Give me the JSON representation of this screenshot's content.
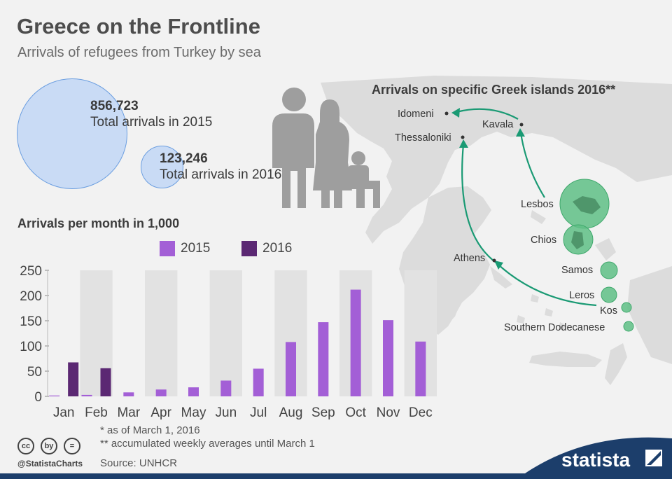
{
  "header": {
    "title": "Greece on the Frontline",
    "subtitle": "Arrivals of refugees from Turkey by sea"
  },
  "totals": {
    "y2015": {
      "value": "856,723",
      "label": "Total arrivals in 2015"
    },
    "y2016": {
      "value": "123,246",
      "label": "Total arrivals in 2016*"
    }
  },
  "map": {
    "title": "Arrivals on specific Greek islands 2016**",
    "cities": [
      "Idomeni",
      "Kavala",
      "Thessaloniki",
      "Athens"
    ],
    "islands": [
      "Lesbos",
      "Chios",
      "Samos",
      "Leros",
      "Kos",
      "Southern Dodecanese"
    ]
  },
  "monthly": {
    "title": "Arrivals per month in 1,000"
  },
  "chart_data": {
    "type": "bar",
    "title": "Arrivals per month in 1,000",
    "categories": [
      "Jan",
      "Feb",
      "Mar",
      "Apr",
      "May",
      "Jun",
      "Jul",
      "Aug",
      "Sep",
      "Oct",
      "Nov",
      "Dec"
    ],
    "series": [
      {
        "name": "2015",
        "color": "#a35fd6",
        "values": [
          1.7,
          2.9,
          7.9,
          13.6,
          17.9,
          31.3,
          54.9,
          107.8,
          147.1,
          211.7,
          151.2,
          108.7
        ]
      },
      {
        "name": "2016",
        "color": "#5b2873",
        "values": [
          67.4,
          55.8,
          null,
          null,
          null,
          null,
          null,
          null,
          null,
          null,
          null,
          null
        ]
      }
    ],
    "yticks": [
      0,
      50,
      100,
      150,
      200,
      250
    ],
    "ylim": [
      0,
      250
    ],
    "grid": false,
    "legend": "top-center"
  },
  "footnotes": {
    "note1": "* as of March 1, 2016",
    "note2": "** accumulated weekly averages until March 1",
    "source": "Source: UNHCR"
  },
  "branding": {
    "handle": "@StatistaCharts",
    "logo": "statista",
    "cc_icons": [
      "cc",
      "by",
      "="
    ]
  }
}
